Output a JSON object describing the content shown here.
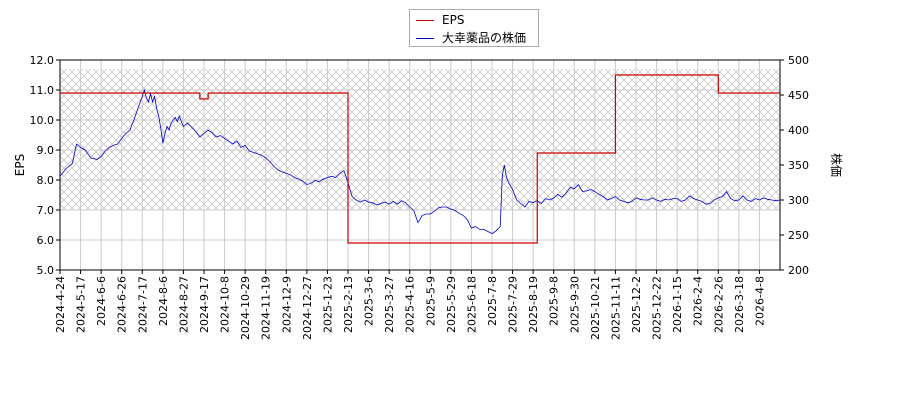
{
  "chart_data": {
    "type": "line",
    "legend_position": "top-center",
    "grid": true,
    "hatched_band": {
      "axis": "left",
      "from": 7.0,
      "to": 11.7
    },
    "xlabel": "",
    "ylabel_left": "EPS",
    "ylabel_right": "株価",
    "ylim_left": [
      5.0,
      12.0
    ],
    "ylim_right": [
      200,
      500
    ],
    "yticks_left": [
      "5.0",
      "6.0",
      "7.0",
      "8.0",
      "9.0",
      "10.0",
      "11.0",
      "12.0"
    ],
    "yticks_right": [
      "200",
      "250",
      "300",
      "350",
      "400",
      "450",
      "500"
    ],
    "x_ticks": [
      "2024-4-24",
      "2024-5-17",
      "2024-6-6",
      "2024-6-26",
      "2024-7-17",
      "2024-8-6",
      "2024-8-27",
      "2024-9-17",
      "2024-10-8",
      "2024-10-29",
      "2024-11-19",
      "2024-12-9",
      "2024-12-27",
      "2025-1-23",
      "2025-2-13",
      "2025-3-6",
      "2025-3-27",
      "2025-4-16",
      "2025-5-9",
      "2025-5-29",
      "2025-6-18",
      "2025-7-8",
      "2025-7-29",
      "2025-8-19",
      "2025-9-8",
      "2025-9-30",
      "2025-10-21",
      "2025-11-11",
      "2025-12-2",
      "2025-12-22",
      "2026-1-15",
      "2026-2-4",
      "2026-2-26",
      "2026-3-18",
      "2026-4-8"
    ],
    "series": [
      {
        "name": "EPS",
        "axis": "left",
        "color": "#cc0000",
        "steps": [
          {
            "x": 0.0,
            "y": 10.9
          },
          {
            "x": 6.8,
            "y": 10.7
          },
          {
            "x": 7.2,
            "y": 10.9
          },
          {
            "x": 14.0,
            "y": 5.9
          },
          {
            "x": 23.2,
            "y": 8.9
          },
          {
            "x": 27.0,
            "y": 11.5
          },
          {
            "x": 32.0,
            "y": 10.9
          },
          {
            "x": 35.0,
            "y": 10.9
          }
        ]
      },
      {
        "name": "大幸薬品の株価",
        "axis": "right",
        "color": "#0000cc",
        "points": [
          [
            0.0,
            334
          ],
          [
            0.3,
            345
          ],
          [
            0.6,
            352
          ],
          [
            0.8,
            380
          ],
          [
            1.0,
            375
          ],
          [
            1.2,
            372
          ],
          [
            1.5,
            360
          ],
          [
            1.8,
            358
          ],
          [
            2.0,
            362
          ],
          [
            2.2,
            370
          ],
          [
            2.4,
            375
          ],
          [
            2.6,
            378
          ],
          [
            2.8,
            380
          ],
          [
            3.0,
            388
          ],
          [
            3.2,
            395
          ],
          [
            3.4,
            400
          ],
          [
            3.6,
            415
          ],
          [
            3.8,
            432
          ],
          [
            4.0,
            448
          ],
          [
            4.1,
            457
          ],
          [
            4.2,
            446
          ],
          [
            4.3,
            440
          ],
          [
            4.4,
            452
          ],
          [
            4.5,
            440
          ],
          [
            4.6,
            448
          ],
          [
            4.7,
            430
          ],
          [
            4.8,
            420
          ],
          [
            4.9,
            402
          ],
          [
            5.0,
            381
          ],
          [
            5.1,
            395
          ],
          [
            5.2,
            405
          ],
          [
            5.3,
            400
          ],
          [
            5.4,
            410
          ],
          [
            5.5,
            414
          ],
          [
            5.6,
            418
          ],
          [
            5.7,
            412
          ],
          [
            5.8,
            420
          ],
          [
            5.9,
            412
          ],
          [
            6.0,
            405
          ],
          [
            6.2,
            410
          ],
          [
            6.4,
            404
          ],
          [
            6.6,
            398
          ],
          [
            6.8,
            390
          ],
          [
            7.0,
            395
          ],
          [
            7.2,
            400
          ],
          [
            7.4,
            396
          ],
          [
            7.6,
            390
          ],
          [
            7.8,
            392
          ],
          [
            8.0,
            388
          ],
          [
            8.2,
            384
          ],
          [
            8.4,
            380
          ],
          [
            8.6,
            384
          ],
          [
            8.8,
            375
          ],
          [
            9.0,
            378
          ],
          [
            9.2,
            370
          ],
          [
            9.4,
            368
          ],
          [
            9.6,
            366
          ],
          [
            9.8,
            364
          ],
          [
            10.0,
            360
          ],
          [
            10.2,
            355
          ],
          [
            10.4,
            348
          ],
          [
            10.6,
            343
          ],
          [
            10.8,
            340
          ],
          [
            11.0,
            338
          ],
          [
            11.2,
            336
          ],
          [
            11.4,
            332
          ],
          [
            11.6,
            330
          ],
          [
            11.8,
            327
          ],
          [
            12.0,
            322
          ],
          [
            12.2,
            324
          ],
          [
            12.4,
            328
          ],
          [
            12.6,
            326
          ],
          [
            12.8,
            330
          ],
          [
            13.0,
            332
          ],
          [
            13.2,
            334
          ],
          [
            13.4,
            332
          ],
          [
            13.6,
            338
          ],
          [
            13.8,
            342
          ],
          [
            14.0,
            325
          ],
          [
            14.2,
            305
          ],
          [
            14.4,
            300
          ],
          [
            14.6,
            297
          ],
          [
            14.8,
            300
          ],
          [
            15.0,
            297
          ],
          [
            15.2,
            296
          ],
          [
            15.4,
            293
          ],
          [
            15.6,
            295
          ],
          [
            15.8,
            297
          ],
          [
            16.0,
            294
          ],
          [
            16.2,
            298
          ],
          [
            16.4,
            294
          ],
          [
            16.6,
            299
          ],
          [
            16.8,
            296
          ],
          [
            17.0,
            290
          ],
          [
            17.2,
            285
          ],
          [
            17.3,
            276
          ],
          [
            17.4,
            268
          ],
          [
            17.5,
            272
          ],
          [
            17.6,
            278
          ],
          [
            17.8,
            280
          ],
          [
            18.0,
            280
          ],
          [
            18.2,
            284
          ],
          [
            18.4,
            289
          ],
          [
            18.6,
            290
          ],
          [
            18.8,
            290
          ],
          [
            19.0,
            287
          ],
          [
            19.2,
            285
          ],
          [
            19.4,
            281
          ],
          [
            19.6,
            278
          ],
          [
            19.8,
            272
          ],
          [
            20.0,
            260
          ],
          [
            20.2,
            262
          ],
          [
            20.4,
            258
          ],
          [
            20.6,
            258
          ],
          [
            20.8,
            255
          ],
          [
            21.0,
            252
          ],
          [
            21.2,
            256
          ],
          [
            21.4,
            262
          ],
          [
            21.5,
            335
          ],
          [
            21.6,
            350
          ],
          [
            21.7,
            333
          ],
          [
            21.8,
            325
          ],
          [
            22.0,
            315
          ],
          [
            22.2,
            300
          ],
          [
            22.4,
            295
          ],
          [
            22.6,
            290
          ],
          [
            22.8,
            298
          ],
          [
            23.0,
            296
          ],
          [
            23.2,
            299
          ],
          [
            23.4,
            295
          ],
          [
            23.6,
            302
          ],
          [
            23.8,
            300
          ],
          [
            24.0,
            303
          ],
          [
            24.2,
            308
          ],
          [
            24.4,
            304
          ],
          [
            24.6,
            310
          ],
          [
            24.8,
            318
          ],
          [
            25.0,
            316
          ],
          [
            25.2,
            322
          ],
          [
            25.4,
            312
          ],
          [
            25.6,
            313
          ],
          [
            25.8,
            315
          ],
          [
            26.0,
            312
          ],
          [
            26.2,
            308
          ],
          [
            26.4,
            305
          ],
          [
            26.6,
            300
          ],
          [
            26.8,
            302
          ],
          [
            27.0,
            305
          ],
          [
            27.2,
            300
          ],
          [
            27.4,
            298
          ],
          [
            27.6,
            296
          ],
          [
            27.8,
            298
          ],
          [
            28.0,
            303
          ],
          [
            28.2,
            301
          ],
          [
            28.4,
            300
          ],
          [
            28.6,
            300
          ],
          [
            28.8,
            303
          ],
          [
            29.0,
            300
          ],
          [
            29.2,
            298
          ],
          [
            29.4,
            301
          ],
          [
            29.6,
            300
          ],
          [
            29.8,
            302
          ],
          [
            30.0,
            302
          ],
          [
            30.2,
            298
          ],
          [
            30.4,
            300
          ],
          [
            30.6,
            306
          ],
          [
            30.8,
            302
          ],
          [
            31.0,
            300
          ],
          [
            31.2,
            298
          ],
          [
            31.4,
            294
          ],
          [
            31.6,
            295
          ],
          [
            31.8,
            300
          ],
          [
            32.0,
            303
          ],
          [
            32.2,
            305
          ],
          [
            32.4,
            312
          ],
          [
            32.6,
            302
          ],
          [
            32.8,
            299
          ],
          [
            33.0,
            300
          ],
          [
            33.2,
            306
          ],
          [
            33.4,
            300
          ],
          [
            33.6,
            298
          ],
          [
            33.8,
            302
          ],
          [
            34.0,
            300
          ],
          [
            34.2,
            303
          ],
          [
            34.4,
            301
          ],
          [
            34.6,
            300
          ],
          [
            34.8,
            299
          ],
          [
            35.0,
            300
          ]
        ]
      }
    ]
  }
}
